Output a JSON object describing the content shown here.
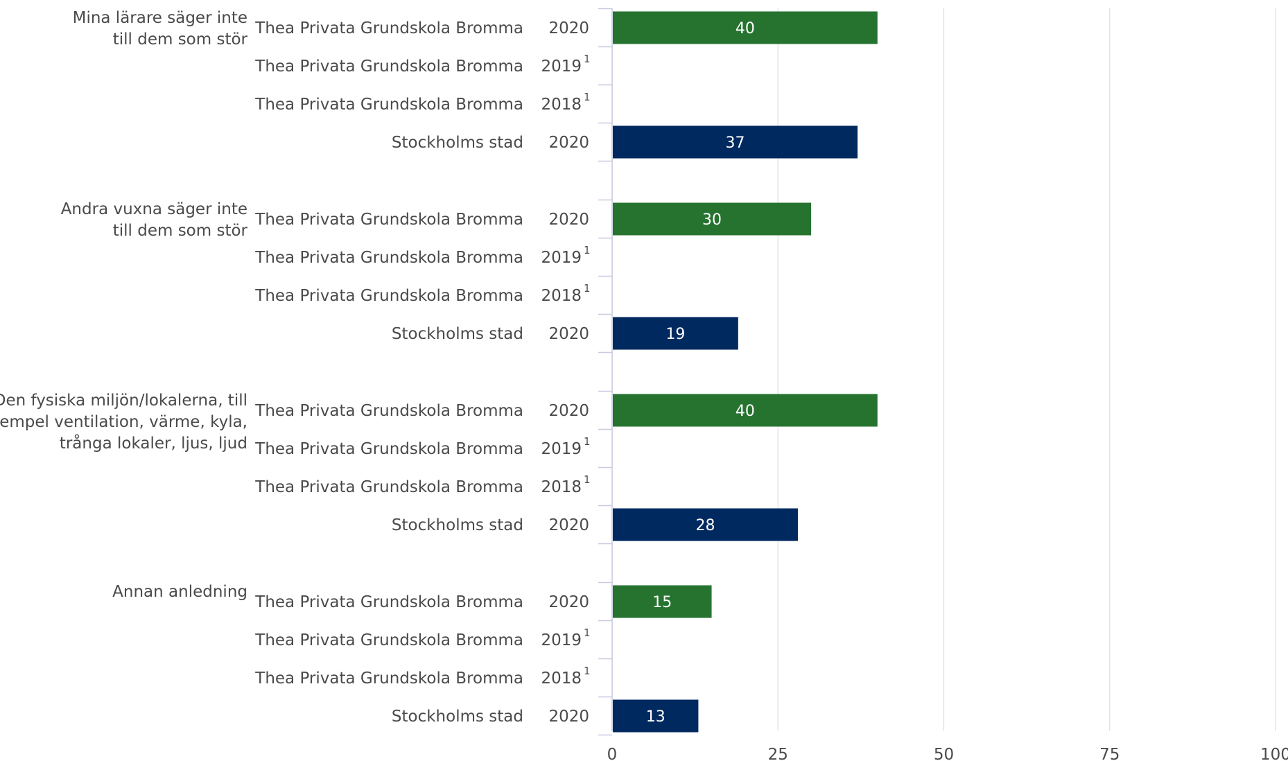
{
  "chart_data": {
    "type": "bar",
    "orientation": "horizontal",
    "xlim": [
      0,
      100
    ],
    "xticks": [
      0,
      25,
      50,
      75,
      100
    ],
    "grid": true,
    "colors": {
      "Thea Privata Grundskola Bromma": "#267330",
      "Stockholms stad": "#002960"
    },
    "footnote_marker": "1",
    "groups": [
      {
        "label": [
          "Mina lärare säger inte",
          "till dem som stör"
        ],
        "rows": [
          {
            "entity": "Thea Privata Grundskola Bromma",
            "year": "2020",
            "value": 40
          },
          {
            "entity": "Thea Privata Grundskola Bromma",
            "year": "2019",
            "footnote": true,
            "value": null
          },
          {
            "entity": "Thea Privata Grundskola Bromma",
            "year": "2018",
            "footnote": true,
            "value": null
          },
          {
            "entity": "Stockholms stad",
            "year": "2020",
            "value": 37
          }
        ]
      },
      {
        "label": [
          "Andra vuxna säger inte",
          "till dem som stör"
        ],
        "rows": [
          {
            "entity": "Thea Privata Grundskola Bromma",
            "year": "2020",
            "value": 30
          },
          {
            "entity": "Thea Privata Grundskola Bromma",
            "year": "2019",
            "footnote": true,
            "value": null
          },
          {
            "entity": "Thea Privata Grundskola Bromma",
            "year": "2018",
            "footnote": true,
            "value": null
          },
          {
            "entity": "Stockholms stad",
            "year": "2020",
            "value": 19
          }
        ]
      },
      {
        "label": [
          "Den fysiska miljön/lokalerna, till",
          "exempel ventilation, värme, kyla,",
          "trånga lokaler, ljus, ljud"
        ],
        "rows": [
          {
            "entity": "Thea Privata Grundskola Bromma",
            "year": "2020",
            "value": 40
          },
          {
            "entity": "Thea Privata Grundskola Bromma",
            "year": "2019",
            "footnote": true,
            "value": null
          },
          {
            "entity": "Thea Privata Grundskola Bromma",
            "year": "2018",
            "footnote": true,
            "value": null
          },
          {
            "entity": "Stockholms stad",
            "year": "2020",
            "value": 28
          }
        ]
      },
      {
        "label": [
          "Annan anledning"
        ],
        "rows": [
          {
            "entity": "Thea Privata Grundskola Bromma",
            "year": "2020",
            "value": 15
          },
          {
            "entity": "Thea Privata Grundskola Bromma",
            "year": "2019",
            "footnote": true,
            "value": null
          },
          {
            "entity": "Thea Privata Grundskola Bromma",
            "year": "2018",
            "footnote": true,
            "value": null
          },
          {
            "entity": "Stockholms stad",
            "year": "2020",
            "value": 13
          }
        ]
      }
    ]
  }
}
